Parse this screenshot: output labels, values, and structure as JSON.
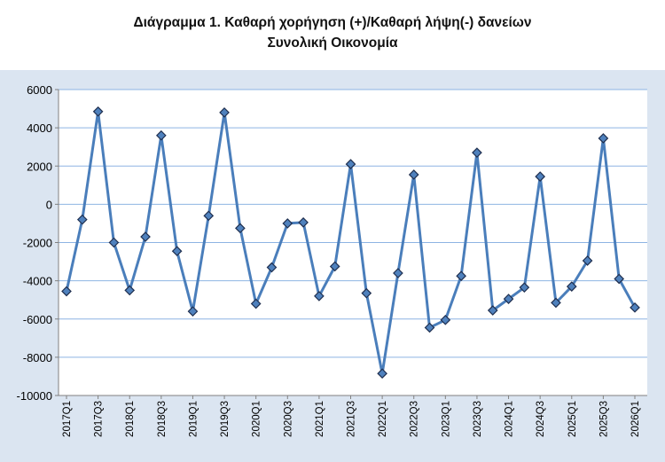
{
  "chart_data": {
    "type": "line",
    "title": "Διάγραμμα 1. Καθαρή χορήγηση (+)/Καθαρή λήψη(-) δανείων",
    "subtitle": "Συνολική Οικονομία",
    "xlabel": "",
    "ylabel": "",
    "ylim": [
      -10000,
      6000
    ],
    "yticks": [
      6000,
      4000,
      2000,
      0,
      -2000,
      -4000,
      -6000,
      -8000,
      -10000
    ],
    "grid": true,
    "legend": "none",
    "x": [
      "2017Q1",
      "2017Q2",
      "2017Q3",
      "2017Q4",
      "2018Q1",
      "2018Q2",
      "2018Q3",
      "2018Q4",
      "2019Q1",
      "2019Q2",
      "2019Q3",
      "2019Q4",
      "2020Q1",
      "2020Q2",
      "2020Q3",
      "2020Q4",
      "2021Q1",
      "2021Q2",
      "2021Q3",
      "2021Q4",
      "2022Q1",
      "2022Q2",
      "2022Q3",
      "2022Q4",
      "2023Q1",
      "2023Q2",
      "2023Q3",
      "2023Q4",
      "2024Q1",
      "2024Q2",
      "2024Q3",
      "2024Q4",
      "2025Q1",
      "2025Q2",
      "2025Q3",
      "2025Q4",
      "2026Q1"
    ],
    "xtick_labels": [
      "2017Q1",
      "2017Q3",
      "2018Q1",
      "2018Q3",
      "2019Q1",
      "2019Q3",
      "2020Q1",
      "2020Q3",
      "2021Q1",
      "2021Q3",
      "2022Q1",
      "2022Q3",
      "2023Q1",
      "2023Q3",
      "2024Q1",
      "2024Q3",
      "2025Q1",
      "2025Q3",
      "2026Q1"
    ],
    "series": [
      {
        "values": [
          -4550,
          -800,
          4850,
          -2000,
          -4500,
          -1700,
          3600,
          -2450,
          -5600,
          -600,
          4800,
          -1250,
          -5200,
          -3300,
          -1000,
          -950,
          -4800,
          -3250,
          2100,
          -4650,
          -8850,
          -3600,
          1550,
          -6450,
          -6050,
          -3750,
          2700,
          -5550,
          -4950,
          -4350,
          1450,
          -5150,
          -4300,
          -2950,
          3450,
          -3900,
          -5400
        ],
        "color": "#4a7ebb",
        "marker_fill": "#4f81bd",
        "marker_stroke": "#1f2f4f"
      }
    ]
  }
}
